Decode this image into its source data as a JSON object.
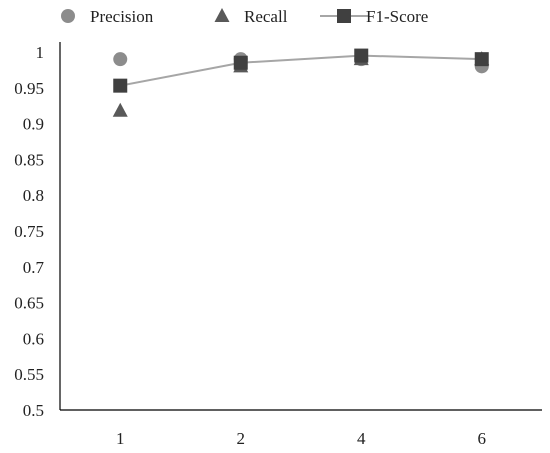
{
  "chart_data": {
    "type": "line",
    "title": "",
    "xlabel": "",
    "ylabel": "",
    "categories": [
      "1",
      "2",
      "4",
      "6"
    ],
    "ylim": [
      0.5,
      1
    ],
    "yticks": [
      "0.5",
      "0.55",
      "0.6",
      "0.65",
      "0.7",
      "0.75",
      "0.8",
      "0.85",
      "0.9",
      "0.95",
      "1"
    ],
    "grid": false,
    "legend_position": "top",
    "series": [
      {
        "name": "Precision",
        "values": [
          0.99,
          0.99,
          0.99,
          0.98
        ],
        "marker": "circle",
        "line": false,
        "color": "#8c8c8c"
      },
      {
        "name": "Recall",
        "values": [
          0.918,
          0.98,
          0.99,
          0.99
        ],
        "marker": "triangle",
        "line": false,
        "color": "#595959"
      },
      {
        "name": "F1-Score",
        "values": [
          0.953,
          0.985,
          0.995,
          0.99
        ],
        "marker": "square",
        "line": true,
        "color": "#404040",
        "line_color": "#a6a6a6"
      }
    ]
  }
}
